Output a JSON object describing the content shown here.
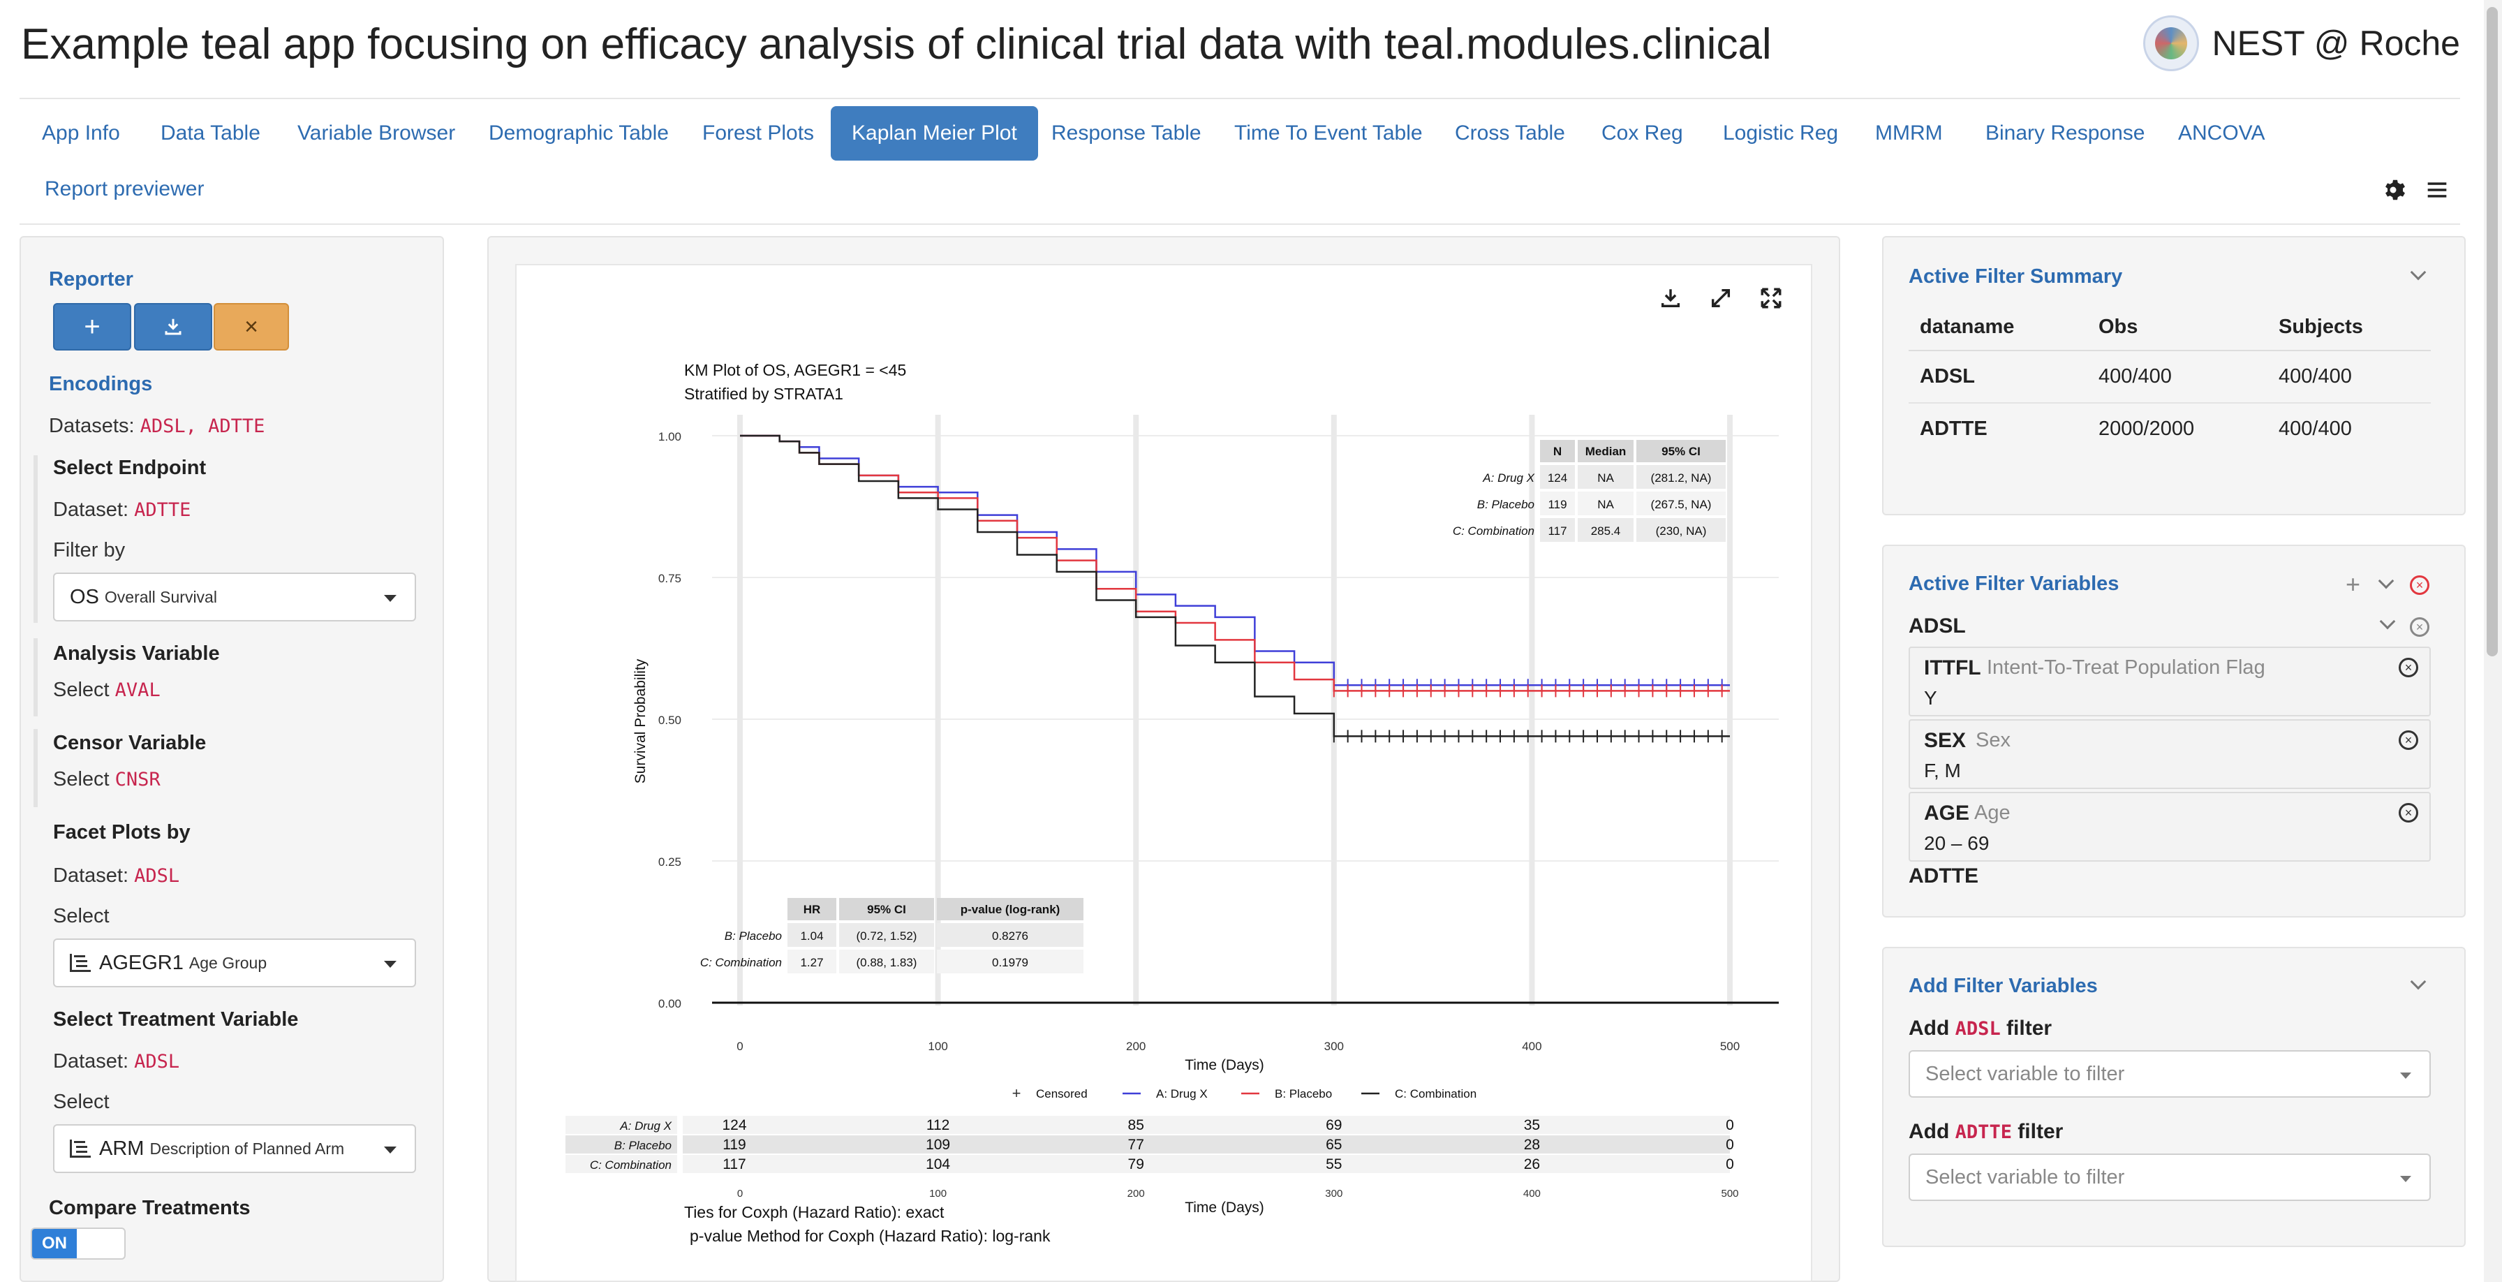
{
  "header": {
    "title": "Example teal app focusing on efficacy analysis of clinical trial data with teal.modules.clinical",
    "brand": "NEST @ Roche"
  },
  "tabs": [
    {
      "label": "App Info"
    },
    {
      "label": "Data Table"
    },
    {
      "label": "Variable Browser"
    },
    {
      "label": "Demographic Table"
    },
    {
      "label": "Forest Plots"
    },
    {
      "label": "Kaplan Meier Plot",
      "active": true
    },
    {
      "label": "Response Table"
    },
    {
      "label": "Time To Event Table"
    },
    {
      "label": "Cross Table"
    },
    {
      "label": "Cox Reg"
    },
    {
      "label": "Logistic Reg"
    },
    {
      "label": "MMRM"
    },
    {
      "label": "Binary Response"
    },
    {
      "label": "ANCOVA"
    },
    {
      "label": "Report previewer"
    }
  ],
  "toolbar": {
    "settings_icon": "gear-icon",
    "menu_icon": "hamburger-icon"
  },
  "left": {
    "reporter_title": "Reporter",
    "reporter_buttons": {
      "add": "+",
      "download": "download-icon",
      "reset": "×"
    },
    "encodings_title": "Encodings",
    "datasets_label": "Datasets:",
    "datasets_value": "ADSL, ADTTE",
    "endpoint": {
      "title": "Select Endpoint",
      "dataset_label": "Dataset:",
      "dataset": "ADTTE",
      "filter_label": "Filter by",
      "value": "OS",
      "value_desc": "Overall Survival"
    },
    "analysis": {
      "title": "Analysis Variable",
      "select_label": "Select",
      "value": "AVAL"
    },
    "censor": {
      "title": "Censor Variable",
      "select_label": "Select",
      "value": "CNSR"
    },
    "facet": {
      "title": "Facet Plots by",
      "dataset_label": "Dataset:",
      "dataset": "ADSL",
      "select_label": "Select",
      "value": "AGEGR1",
      "value_desc": "Age Group"
    },
    "treatment": {
      "title": "Select Treatment Variable",
      "dataset_label": "Dataset:",
      "dataset": "ADSL",
      "select_label": "Select",
      "value": "ARM",
      "value_desc": "Description of Planned Arm"
    },
    "compare": {
      "title": "Compare Treatments",
      "toggle": "ON"
    }
  },
  "plot": {
    "icons": [
      "download-icon",
      "expand-icon",
      "fullscreen-icon"
    ],
    "footnote1": "Ties for Coxph (Hazard Ratio): exact",
    "footnote2": "p-value Method for Coxph (Hazard Ratio): log-rank"
  },
  "chart_data": {
    "type": "line",
    "title": "KM Plot of OS, AGEGR1 = <45",
    "subtitle": "Stratified by STRATA1",
    "xlabel": "Time (Days)",
    "ylabel": "Survival Probability",
    "xlim": [
      0,
      500
    ],
    "ylim": [
      0,
      1
    ],
    "x_ticks": [
      "0",
      "100",
      "200",
      "300",
      "400",
      "500"
    ],
    "y_ticks": [
      "0.00",
      "0.25",
      "0.50",
      "0.75",
      "1.00"
    ],
    "grid": true,
    "legend": [
      "Censored",
      "A: Drug X",
      "B: Placebo",
      "C: Combination"
    ],
    "legend_placement": "bottom",
    "colors": {
      "A: Drug X": "#3f3fd8",
      "B: Placebo": "#e2373f",
      "C: Combination": "#222222"
    },
    "series": [
      {
        "name": "A: Drug X",
        "x": [
          0,
          10,
          20,
          30,
          40,
          60,
          80,
          100,
          120,
          140,
          160,
          180,
          200,
          220,
          240,
          260,
          280,
          300,
          320,
          340,
          360,
          380,
          400,
          420,
          440,
          460,
          480,
          500
        ],
        "y": [
          1.0,
          1.0,
          0.99,
          0.98,
          0.96,
          0.93,
          0.91,
          0.9,
          0.86,
          0.83,
          0.8,
          0.76,
          0.72,
          0.7,
          0.68,
          0.62,
          0.6,
          0.56,
          0.56,
          0.56,
          0.56,
          0.56,
          0.56,
          0.56,
          0.56,
          0.56,
          0.56,
          0.56
        ]
      },
      {
        "name": "B: Placebo",
        "x": [
          0,
          10,
          20,
          30,
          40,
          60,
          80,
          100,
          120,
          140,
          160,
          180,
          200,
          220,
          240,
          260,
          280,
          300,
          320,
          340,
          360,
          380,
          400,
          420,
          440,
          460,
          480,
          500
        ],
        "y": [
          1.0,
          1.0,
          0.99,
          0.97,
          0.95,
          0.93,
          0.9,
          0.89,
          0.85,
          0.82,
          0.78,
          0.73,
          0.69,
          0.67,
          0.64,
          0.6,
          0.57,
          0.55,
          0.55,
          0.55,
          0.55,
          0.55,
          0.55,
          0.55,
          0.55,
          0.55,
          0.55,
          0.55
        ]
      },
      {
        "name": "C: Combination",
        "x": [
          0,
          10,
          20,
          30,
          40,
          60,
          80,
          100,
          120,
          140,
          160,
          180,
          200,
          220,
          240,
          260,
          280,
          300,
          320,
          340,
          360,
          380,
          400,
          420,
          440,
          460,
          480,
          500
        ],
        "y": [
          1.0,
          1.0,
          0.99,
          0.97,
          0.95,
          0.92,
          0.89,
          0.87,
          0.83,
          0.79,
          0.76,
          0.71,
          0.68,
          0.63,
          0.6,
          0.54,
          0.51,
          0.47,
          0.47,
          0.47,
          0.47,
          0.47,
          0.47,
          0.47,
          0.47,
          0.47,
          0.47,
          0.47
        ]
      }
    ],
    "median_table": {
      "headers": [
        "",
        "N",
        "Median",
        "95% CI"
      ],
      "rows": [
        [
          "A: Drug X",
          "124",
          "NA",
          "(281.2, NA)"
        ],
        [
          "B: Placebo",
          "119",
          "NA",
          "(267.5, NA)"
        ],
        [
          "C: Combination",
          "117",
          "285.4",
          "(230, NA)"
        ]
      ]
    },
    "hr_table": {
      "headers": [
        "",
        "HR",
        "95% CI",
        "p-value (log-rank)"
      ],
      "rows": [
        [
          "B: Placebo",
          "1.04",
          "(0.72, 1.52)",
          "0.8276"
        ],
        [
          "C: Combination",
          "1.27",
          "(0.88, 1.83)",
          "0.1979"
        ]
      ]
    },
    "risk_table": {
      "xlabel": "Time (Days)",
      "rows": [
        {
          "name": "A: Drug X",
          "values": [
            "124",
            "112",
            "85",
            "69",
            "35",
            "0"
          ]
        },
        {
          "name": "B: Placebo",
          "values": [
            "119",
            "109",
            "77",
            "65",
            "28",
            "0"
          ]
        },
        {
          "name": "C: Combination",
          "values": [
            "117",
            "104",
            "79",
            "55",
            "26",
            "0"
          ]
        }
      ]
    }
  },
  "right": {
    "summary": {
      "title": "Active Filter Summary",
      "headers": [
        "dataname",
        "Obs",
        "Subjects"
      ],
      "rows": [
        [
          "ADSL",
          "400/400",
          "400/400"
        ],
        [
          "ADTTE",
          "2000/2000",
          "400/400"
        ]
      ]
    },
    "active": {
      "title": "Active Filter Variables",
      "adsl_label": "ADSL",
      "filters": [
        {
          "name": "ITTFL",
          "desc": "Intent-To-Treat Population Flag",
          "value": "Y"
        },
        {
          "name": "SEX",
          "desc": "Sex",
          "value": "F, M"
        },
        {
          "name": "AGE",
          "desc": "Age",
          "value": "20 – 69"
        }
      ],
      "adtte_label": "ADTTE"
    },
    "add": {
      "title": "Add Filter Variables",
      "add_label": "Add",
      "filter_label": "filter",
      "adsl": "ADSL",
      "adtte": "ADTTE",
      "placeholder": "Select variable to filter"
    }
  }
}
